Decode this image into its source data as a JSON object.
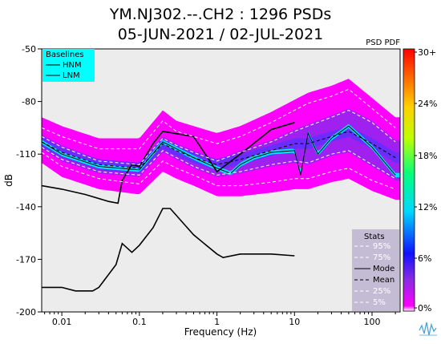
{
  "chart_data": {
    "type": "heatmap",
    "title_lines": [
      "YM.NJ302.--.CH2 : 1296 PSDs",
      "05-JUN-2021 / 02-JUL-2021"
    ],
    "xlabel": "Frequency (Hz)",
    "ylabel": "dB",
    "x_scale": "log",
    "xlim": [
      0.0055,
      230
    ],
    "ylim": [
      -200,
      -50
    ],
    "x_ticks": [
      {
        "value": 0.01,
        "label": "0.01"
      },
      {
        "value": 0.1,
        "label": "0.1"
      },
      {
        "value": 1,
        "label": "1"
      },
      {
        "value": 10,
        "label": "10"
      },
      {
        "value": 100,
        "label": "100"
      }
    ],
    "y_ticks": [
      {
        "value": -50,
        "label": "-50"
      },
      {
        "value": -80,
        "label": "-80"
      },
      {
        "value": -110,
        "label": "-110"
      },
      {
        "value": -140,
        "label": "-140"
      },
      {
        "value": -170,
        "label": "-170"
      },
      {
        "value": -200,
        "label": "-200"
      }
    ],
    "grid": false,
    "colorbar": {
      "title": "PSD PDF",
      "ticks": [
        "30+",
        "24%",
        "18%",
        "12%",
        "6%",
        "0%"
      ]
    },
    "baselines_legend": {
      "title": "Baselines",
      "entries": [
        "HNM",
        "LNM"
      ]
    },
    "stats_legend": {
      "title": "Stats",
      "entries": [
        "95%",
        "75%",
        "Mode",
        "Mean",
        "25%",
        "5%"
      ]
    },
    "series": [
      {
        "name": "HNM",
        "x": [
          0.0055,
          0.01,
          0.02,
          0.04,
          0.053,
          0.06,
          0.08,
          0.1,
          0.15,
          0.2,
          0.5,
          1,
          2,
          5,
          10
        ],
        "y": [
          -128,
          -130,
          -133,
          -137,
          -138,
          -125,
          -116,
          -117,
          -104,
          -97,
          -100,
          -120,
          -110,
          -96,
          -92
        ]
      },
      {
        "name": "LNM",
        "x": [
          0.0055,
          0.01,
          0.015,
          0.025,
          0.03,
          0.05,
          0.06,
          0.08,
          0.1,
          0.15,
          0.2,
          0.25,
          0.5,
          1,
          1.2,
          2,
          5,
          10
        ],
        "y": [
          -186,
          -186,
          -188,
          -188,
          -186,
          -173,
          -161,
          -166,
          -162,
          -152,
          -141,
          -141,
          -156,
          -167,
          -169,
          -167,
          -167,
          -168
        ]
      },
      {
        "name": "95%",
        "x": [
          0.0055,
          0.01,
          0.03,
          0.1,
          0.2,
          0.3,
          0.5,
          1,
          2,
          5,
          10,
          15,
          30,
          50,
          100,
          200
        ],
        "y": [
          -95,
          -100,
          -107,
          -107,
          -91,
          -97,
          -100,
          -104,
          -100,
          -92,
          -85,
          -81,
          -77,
          -73,
          -84,
          -95
        ]
      },
      {
        "name": "75%",
        "x": [
          0.0055,
          0.01,
          0.03,
          0.1,
          0.2,
          0.3,
          0.5,
          1,
          2,
          5,
          10,
          15,
          30,
          50,
          100,
          200
        ],
        "y": [
          -100,
          -106,
          -114,
          -116,
          -101,
          -105,
          -109,
          -114,
          -109,
          -103,
          -97,
          -94,
          -89,
          -85,
          -92,
          -103
        ]
      },
      {
        "name": "Mode",
        "x": [
          0.0055,
          0.01,
          0.03,
          0.1,
          0.2,
          0.3,
          0.5,
          1,
          1.5,
          2,
          3,
          5,
          10,
          12,
          15,
          20,
          30,
          50,
          100,
          200
        ],
        "y": [
          -103,
          -110,
          -117,
          -119,
          -103,
          -107,
          -112,
          -118,
          -121,
          -116,
          -112,
          -109,
          -108,
          -122,
          -98,
          -110,
          -101,
          -94,
          -106,
          -122
        ]
      },
      {
        "name": "Mean",
        "x": [
          0.0055,
          0.01,
          0.03,
          0.1,
          0.2,
          0.3,
          0.5,
          1,
          2,
          5,
          10,
          15,
          30,
          50,
          100,
          200
        ],
        "y": [
          -103,
          -109,
          -116,
          -118,
          -104,
          -108,
          -112,
          -116,
          -113,
          -108,
          -104,
          -104,
          -100,
          -97,
          -104,
          -112
        ]
      },
      {
        "name": "25%",
        "x": [
          0.0055,
          0.01,
          0.03,
          0.1,
          0.2,
          0.3,
          0.5,
          1,
          2,
          5,
          10,
          15,
          30,
          50,
          100,
          200
        ],
        "y": [
          -106,
          -113,
          -120,
          -122,
          -108,
          -112,
          -117,
          -122,
          -120,
          -116,
          -114,
          -115,
          -110,
          -108,
          -116,
          -124
        ]
      },
      {
        "name": "5%",
        "x": [
          0.0055,
          0.01,
          0.03,
          0.1,
          0.2,
          0.3,
          0.5,
          1,
          2,
          5,
          10,
          15,
          30,
          50,
          100,
          200
        ],
        "y": [
          -109,
          -117,
          -124,
          -127,
          -114,
          -118,
          -122,
          -128,
          -128,
          -126,
          -124,
          -124,
          -120,
          -118,
          -125,
          -130
        ]
      }
    ],
    "colors": {
      "background_panel": "#ececec",
      "legend_baselines_bg": "#00ffff",
      "legend_stats_bg": "#c4bcd4",
      "pdf_low": "#ff00ff",
      "pdf_mid": "#6a2cff",
      "pdf_high": "#00e0ff",
      "line": "#000000",
      "stat_line": "#ffffff"
    }
  }
}
